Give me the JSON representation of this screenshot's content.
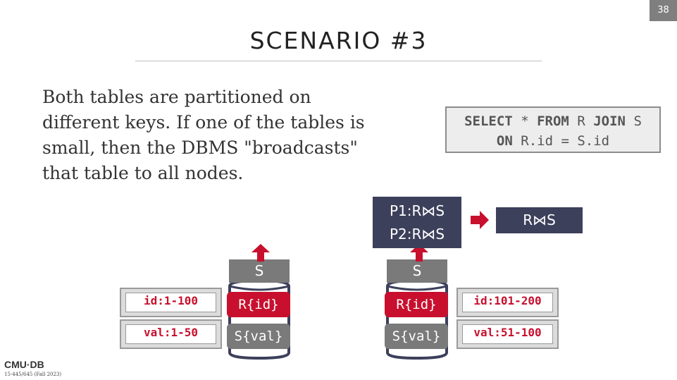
{
  "slide_number": "38",
  "title": "SCENARIO #3",
  "body": "Both tables are partitioned on different keys. If one of the tables is small, then the DBMS \"broadcasts\" that table to all nodes.",
  "sql": {
    "kw_select": "SELECT",
    "star": "*",
    "kw_from": "FROM",
    "table_r": "R",
    "kw_join": "JOIN",
    "table_s": "S",
    "kw_on": "ON",
    "condition": "R.id = S.id"
  },
  "node1": {
    "cap": "S",
    "part_r": "R{id}",
    "part_s": "S{val}",
    "label_r": "id:1-100",
    "label_s": "val:1-50"
  },
  "node2": {
    "cap": "S",
    "part_r": "R{id}",
    "part_s": "S{val}",
    "label_r": "id:101-200",
    "label_s": "val:51-100"
  },
  "partial_results": [
    "P1:R⋈S",
    "P2:R⋈S"
  ],
  "final_result": "R⋈S",
  "footer": {
    "logo": "CMU·DB",
    "course": "15-445/645 (Fall 2023)"
  },
  "colors": {
    "accent_red": "#c8102e",
    "dark_navy": "#3d405b",
    "gray": "#7a7a7a"
  }
}
